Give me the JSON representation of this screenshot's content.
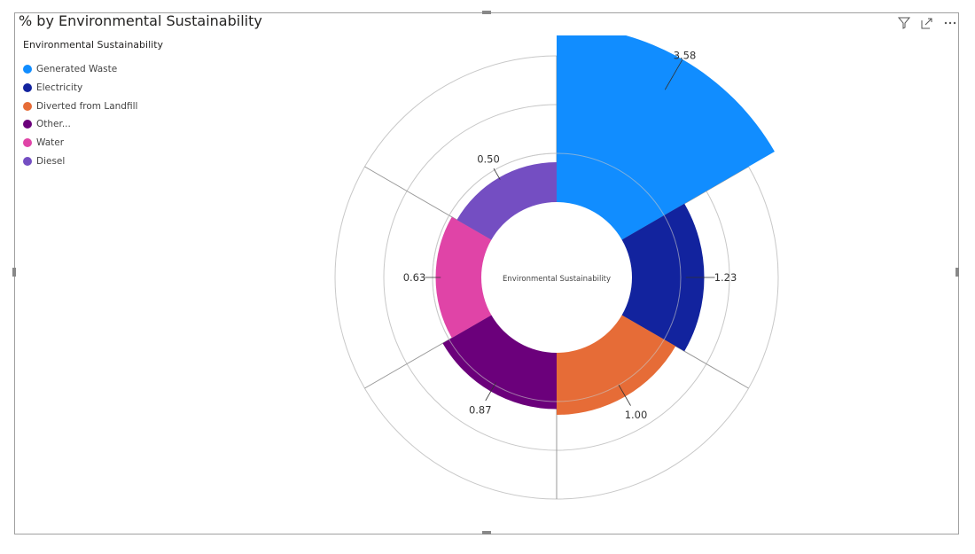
{
  "title": "% by Environmental Sustainability",
  "header_icons": [
    "filter-icon",
    "focus-mode-icon",
    "more-options-icon"
  ],
  "chart_data": {
    "type": "polar-bar",
    "title": "% by Environmental Sustainability",
    "center_label": "Environmental Sustainability",
    "legend": {
      "title": "Environmental Sustainability",
      "position": "top-left"
    },
    "categories": [
      "Generated Waste",
      "Electricity",
      "Diverted from Landfill",
      "Other...",
      "Water",
      "Diesel"
    ],
    "values": [
      3.58,
      1.23,
      1.0,
      0.87,
      0.63,
      0.5
    ],
    "labels": [
      "3.58",
      "1.23",
      "1.00",
      "0.87",
      "0.63",
      "0.50"
    ],
    "colors": [
      "#118DFF",
      "#12239E",
      "#E66C37",
      "#6B007B",
      "#E044A7",
      "#744EC2"
    ],
    "grid": true
  }
}
